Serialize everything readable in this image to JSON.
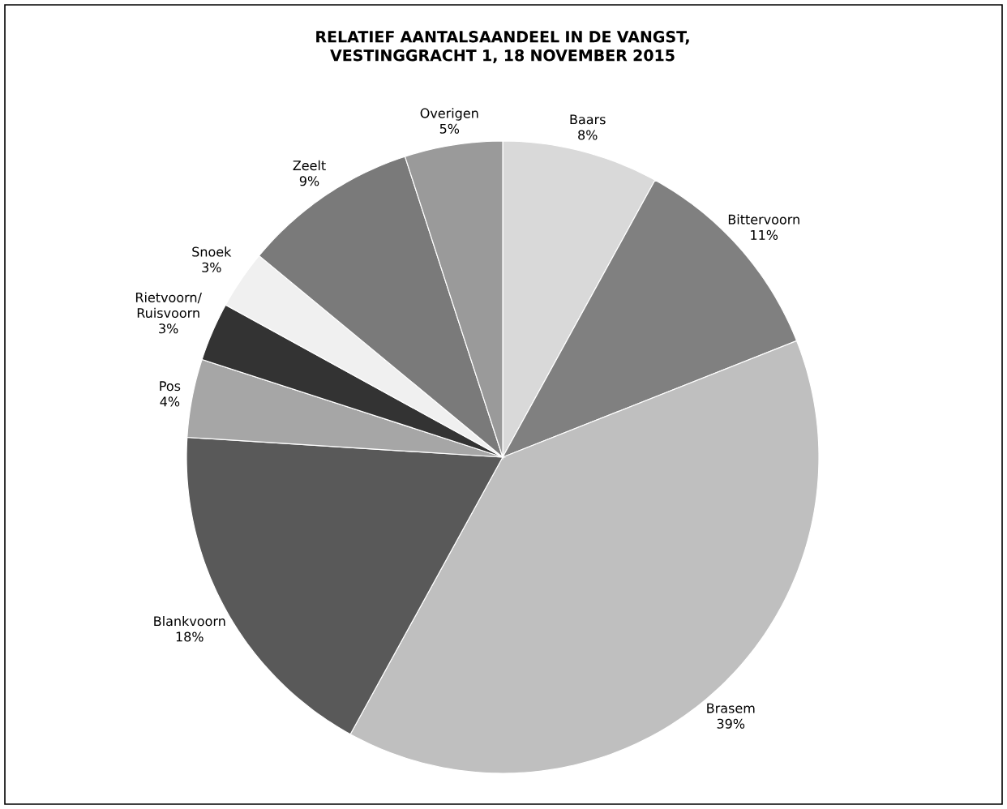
{
  "chart_data": {
    "type": "pie",
    "title": "RELATIEF AANTALSAANDEEL IN DE VANGST, VESTINGGRACHT 1, 18 NOVEMBER 2015",
    "categories": [
      "Baars",
      "Bittervoorn",
      "Brasem",
      "Blankvoorn",
      "Pos",
      "Rietvoorn/ Ruisvoorn",
      "Snoek",
      "Zeelt",
      "Overigen"
    ],
    "values": [
      8,
      11,
      39,
      18,
      4,
      3,
      3,
      9,
      5
    ],
    "colors": [
      "#d9d9d9",
      "#808080",
      "#bfbfbf",
      "#595959",
      "#a6a6a6",
      "#333333",
      "#f0f0f0",
      "#7a7a7a",
      "#9a9a9a"
    ],
    "value_labels": [
      "8%",
      "11%",
      "39%",
      "18%",
      "4%",
      "3%",
      "3%",
      "9%",
      "5%"
    ]
  }
}
